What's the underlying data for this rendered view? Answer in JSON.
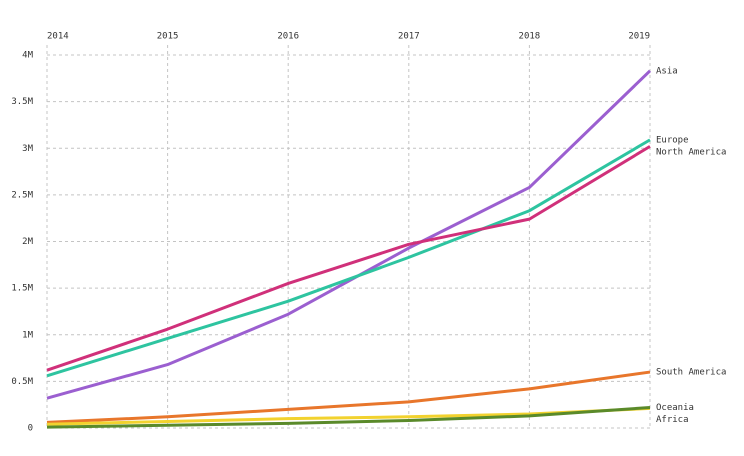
{
  "chart_data": {
    "type": "line",
    "x": [
      2014,
      2015,
      2016,
      2017,
      2018,
      2019
    ],
    "xlim": [
      2014,
      2019
    ],
    "xticks": [
      2014,
      2015,
      2016,
      2017,
      2018,
      2019
    ],
    "ylim": [
      0,
      4000000
    ],
    "yticks": [
      0,
      {
        "value": 500000,
        "label": "0.5M"
      },
      {
        "value": 1000000,
        "label": "1M"
      },
      {
        "value": 1500000,
        "label": "1.5M"
      },
      {
        "value": 2000000,
        "label": "2M"
      },
      {
        "value": 2500000,
        "label": "2.5M"
      },
      {
        "value": 3000000,
        "label": "3M"
      },
      {
        "value": 3500000,
        "label": "3.5M"
      },
      {
        "value": 4000000,
        "label": "4M"
      }
    ],
    "grid": true,
    "series": [
      {
        "name": "Asia",
        "color": "#9b5fd0",
        "values": [
          320000,
          680000,
          1220000,
          1930000,
          2580000,
          3830000
        ]
      },
      {
        "name": "Europe",
        "color": "#2ec4a0",
        "values": [
          560000,
          960000,
          1360000,
          1830000,
          2330000,
          3090000
        ]
      },
      {
        "name": "North America",
        "color": "#d0307a",
        "values": [
          620000,
          1060000,
          1550000,
          1970000,
          2240000,
          3020000
        ]
      },
      {
        "name": "South America",
        "color": "#e8762b",
        "values": [
          60000,
          120000,
          200000,
          280000,
          420000,
          600000
        ]
      },
      {
        "name": "Africa",
        "color": "#f2d22e",
        "values": [
          40000,
          70000,
          100000,
          120000,
          150000,
          210000
        ]
      },
      {
        "name": "Oceania",
        "color": "#5a8a2a",
        "values": [
          10000,
          30000,
          50000,
          80000,
          130000,
          220000
        ]
      }
    ]
  }
}
